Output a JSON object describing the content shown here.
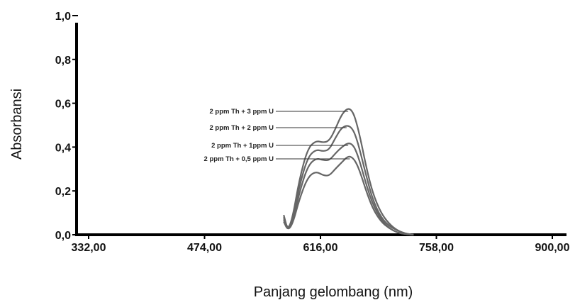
{
  "chart_data": {
    "type": "line",
    "title": "",
    "xlabel": "Panjang gelombang (nm)",
    "ylabel": "Absorbansi",
    "xlim": [
      332,
      900
    ],
    "ylim": [
      0,
      1.0
    ],
    "x_ticks": [
      "332,00",
      "474,00",
      "616,00",
      "758,00",
      "900,00"
    ],
    "y_ticks": [
      "0,0",
      "0,2",
      "0,4",
      "0,6",
      "0,8",
      "1,0"
    ],
    "grid": false,
    "legend": "none",
    "line_color": "#666666",
    "x": [
      571,
      576,
      582,
      590,
      600,
      610,
      620,
      627,
      634,
      642,
      650,
      656,
      661,
      666,
      672,
      680,
      690,
      700,
      710,
      720,
      730
    ],
    "series": [
      {
        "values": [
          0.09,
          0.02,
          0.08,
          0.25,
          0.39,
          0.43,
          0.42,
          0.43,
          0.48,
          0.55,
          0.58,
          0.56,
          0.5,
          0.42,
          0.31,
          0.19,
          0.1,
          0.05,
          0.02,
          0.005,
          0.0
        ]
      },
      {
        "values": [
          0.08,
          0.02,
          0.07,
          0.22,
          0.35,
          0.39,
          0.38,
          0.39,
          0.44,
          0.49,
          0.5,
          0.48,
          0.43,
          0.36,
          0.27,
          0.16,
          0.08,
          0.04,
          0.02,
          0.005,
          0.0
        ]
      },
      {
        "values": [
          0.07,
          0.02,
          0.06,
          0.19,
          0.31,
          0.35,
          0.34,
          0.34,
          0.37,
          0.4,
          0.42,
          0.41,
          0.37,
          0.31,
          0.23,
          0.14,
          0.07,
          0.03,
          0.01,
          0.003,
          0.0
        ]
      },
      {
        "values": [
          0.06,
          0.02,
          0.05,
          0.16,
          0.26,
          0.29,
          0.27,
          0.27,
          0.3,
          0.33,
          0.36,
          0.35,
          0.32,
          0.27,
          0.2,
          0.12,
          0.06,
          0.03,
          0.01,
          0.003,
          0.0
        ]
      }
    ],
    "annotations": [
      {
        "text": "2 ppm Th + 3 ppm U",
        "target_x": 650,
        "target_y": 0.58
      },
      {
        "text": "2 ppm Th + 2 ppm U",
        "target_x": 648,
        "target_y": 0.5
      },
      {
        "text": "2 ppm Th +  1ppm U",
        "target_x": 650,
        "target_y": 0.42
      },
      {
        "text": "2 ppm Th +   0,5  ppm U",
        "target_x": 652,
        "target_y": 0.36
      }
    ]
  }
}
